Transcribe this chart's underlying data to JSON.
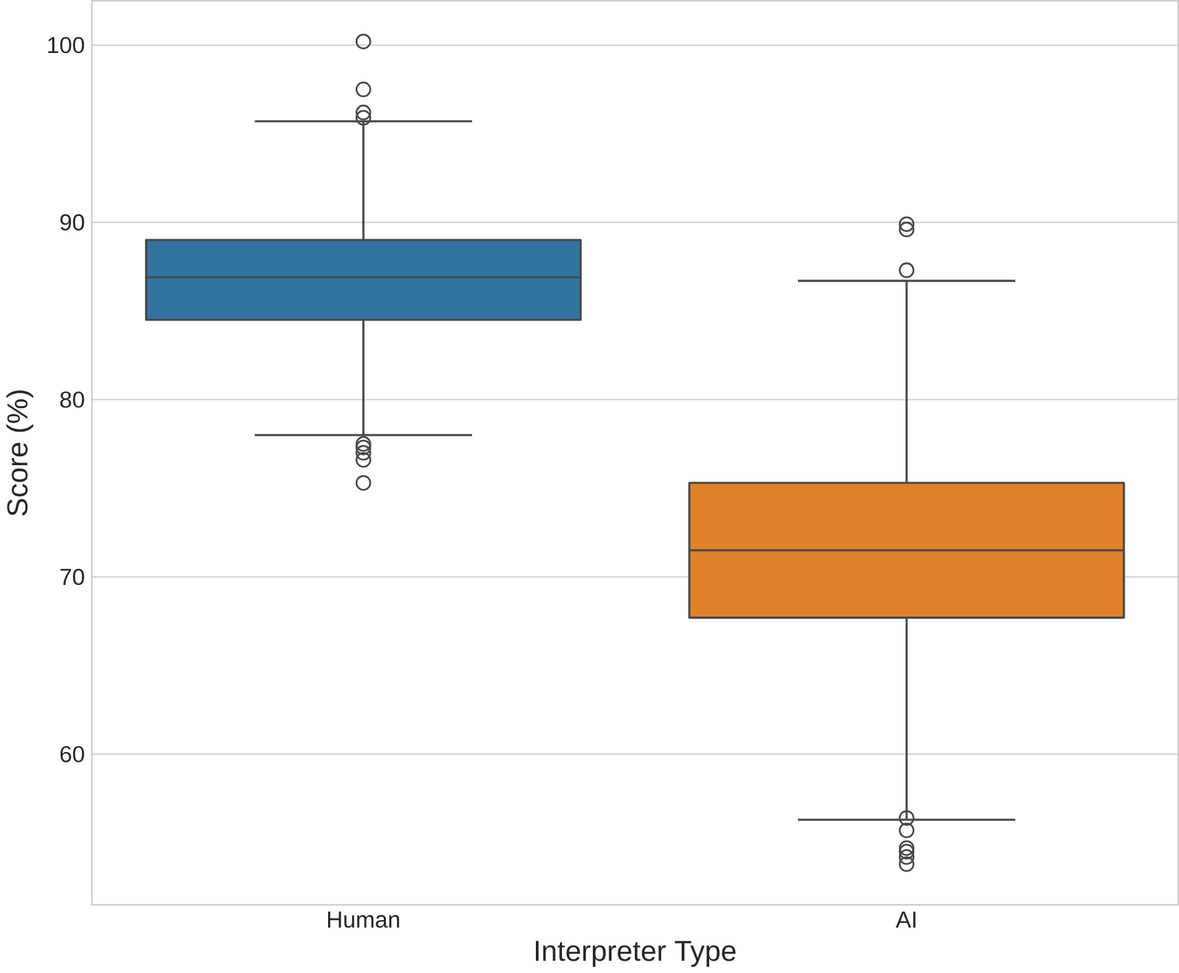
{
  "chart_data": {
    "type": "box",
    "xlabel": "Interpreter Type",
    "ylabel": "Score (%)",
    "categories": [
      "Human",
      "AI"
    ],
    "colors": [
      "#3274a1",
      "#e1812c"
    ],
    "boxes": [
      {
        "low": 78.0,
        "q1": 84.5,
        "median": 86.9,
        "q3": 89.0,
        "high": 95.7,
        "outliers": [
          100.2,
          97.5,
          96.2,
          95.9,
          77.5,
          77.3,
          77.0,
          76.6,
          75.3
        ]
      },
      {
        "low": 56.3,
        "q1": 67.7,
        "median": 71.5,
        "q3": 75.3,
        "high": 86.7,
        "outliers": [
          89.9,
          89.6,
          87.3,
          56.4,
          55.7,
          54.7,
          54.5,
          54.2,
          53.8
        ]
      }
    ],
    "ylim": [
      51.5,
      102.5
    ],
    "yticks": [
      60,
      70,
      80,
      90,
      100
    ],
    "grid": "y",
    "marker": "circle"
  }
}
